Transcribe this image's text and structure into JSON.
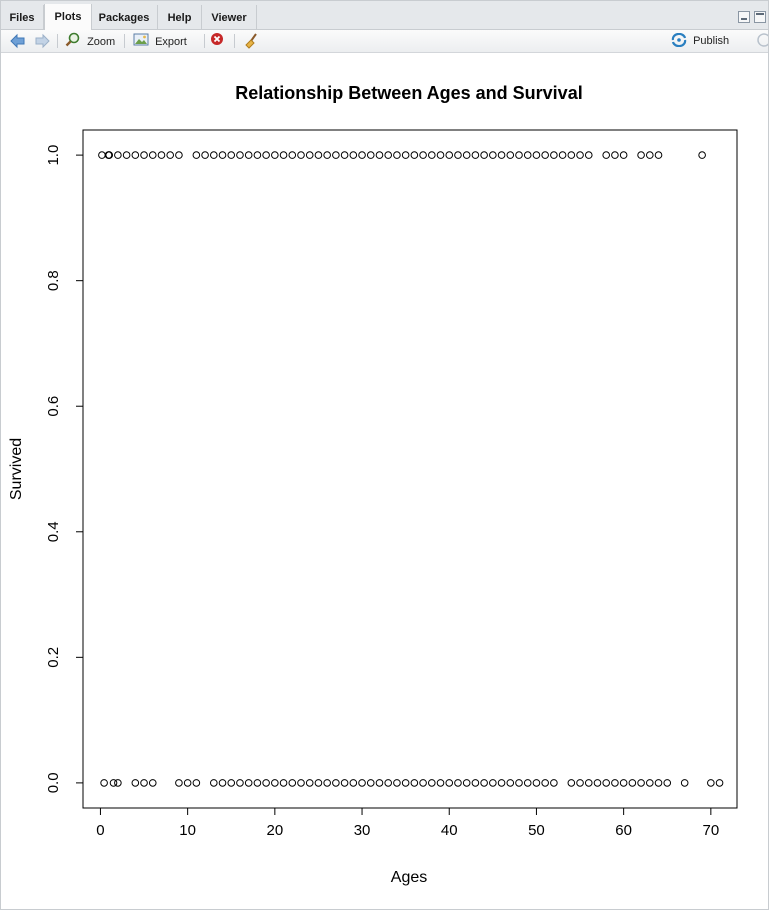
{
  "tabs": [
    {
      "label": "Files"
    },
    {
      "label": "Plots"
    },
    {
      "label": "Packages"
    },
    {
      "label": "Help"
    },
    {
      "label": "Viewer"
    }
  ],
  "toolbar": {
    "zoom_label": "Zoom",
    "export_label": "Export",
    "publish_label": "Publish"
  },
  "colors": {
    "accent": "#2a7fc0",
    "remove": "#c62828",
    "points": "#000000"
  },
  "chart_data": {
    "type": "scatter",
    "title": "Relationship Between Ages and Survival",
    "xlabel": "Ages",
    "ylabel": "Survived",
    "xlim": [
      -2,
      73
    ],
    "ylim": [
      -0.04,
      1.04
    ],
    "xticks": [
      0,
      10,
      20,
      30,
      40,
      50,
      60,
      70
    ],
    "yticks": [
      0.0,
      0.2,
      0.4,
      0.6,
      0.8,
      1.0
    ],
    "ytick_labels": [
      "0.0",
      "0.2",
      "0.4",
      "0.6",
      "0.8",
      "1.0"
    ],
    "grid": false,
    "point_style": "open-circle",
    "series": [
      {
        "y": 1.0,
        "x": [
          0.17,
          0.92,
          1,
          1,
          2,
          3,
          4,
          5,
          6,
          7,
          8,
          9,
          11,
          12,
          13,
          14,
          15,
          16,
          17,
          18,
          19,
          20,
          21,
          22,
          23,
          24,
          25,
          26,
          27,
          28,
          29,
          30,
          31,
          32,
          33,
          34,
          35,
          36,
          37,
          38,
          39,
          40,
          41,
          42,
          43,
          44,
          45,
          46,
          47,
          48,
          49,
          50,
          51,
          52,
          53,
          54,
          55,
          56,
          58,
          59,
          60,
          62,
          63,
          64,
          69
        ]
      },
      {
        "y": 0.0,
        "x": [
          0.42,
          1.5,
          2,
          4,
          5,
          6,
          9,
          10,
          11,
          13,
          14,
          15,
          16,
          17,
          18,
          19,
          20,
          21,
          22,
          23,
          24,
          25,
          26,
          27,
          28,
          29,
          30,
          31,
          32,
          33,
          34,
          35,
          36,
          37,
          38,
          39,
          40,
          41,
          42,
          43,
          44,
          45,
          46,
          47,
          48,
          49,
          50,
          51,
          52,
          54,
          55,
          56,
          57,
          58,
          59,
          60,
          61,
          62,
          63,
          64,
          65,
          67,
          70,
          71
        ]
      }
    ]
  }
}
